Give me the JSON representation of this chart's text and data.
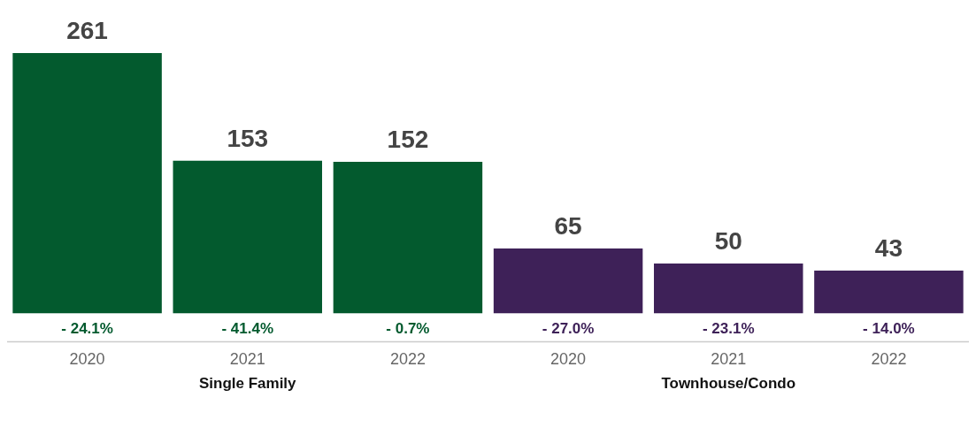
{
  "chart_data": {
    "type": "bar",
    "categories": [
      "2020",
      "2021",
      "2022",
      "2020",
      "2021",
      "2022"
    ],
    "series": [
      {
        "color": "#035a2e",
        "values": [
          261,
          153,
          152,
          null,
          null,
          null
        ]
      },
      {
        "color": "#3e2158",
        "values": [
          null,
          null,
          null,
          65,
          50,
          43
        ]
      }
    ],
    "stacked": true,
    "data_labels": true,
    "grid": false,
    "legend": false,
    "annotations": [
      "- 24.1%",
      "- 41.4%",
      "- 0.7%",
      "- 27.0%",
      "- 23.1%",
      "- 14.0%",
      "Single Family",
      "Townhouse/Condo"
    ]
  }
}
